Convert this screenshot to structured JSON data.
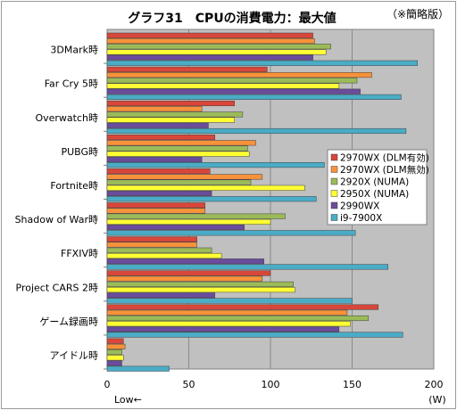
{
  "chart_data": {
    "type": "bar",
    "orientation": "horizontal",
    "title": "グラフ31　CPUの消費電力：最大値",
    "note": "（※簡略版）",
    "categories": [
      "3DMark時",
      "Far Cry 5時",
      "Overwatch時",
      "PUBG時",
      "Fortnite時",
      "Shadow of War時",
      "FFXIV時",
      "Project CARS 2時",
      "ゲーム録画時",
      "アイドル時"
    ],
    "series": [
      {
        "name": "2970WX (DLM有効)",
        "color": "#d9463a",
        "values": [
          126,
          98,
          78,
          66,
          63,
          60,
          55,
          100,
          166,
          10
        ]
      },
      {
        "name": "2970WX (DLM無効)",
        "color": "#f7923a",
        "values": [
          127,
          162,
          58,
          91,
          95,
          60,
          55,
          95,
          147,
          11
        ]
      },
      {
        "name": "2920X (NUMA)",
        "color": "#9bbb59",
        "values": [
          137,
          153,
          83,
          86,
          88,
          109,
          64,
          114,
          160,
          9
        ]
      },
      {
        "name": "2950X (NUMA)",
        "color": "#ffff33",
        "values": [
          134,
          142,
          78,
          87,
          121,
          100,
          70,
          115,
          149,
          10
        ]
      },
      {
        "name": "2990WX",
        "color": "#6a4c9c",
        "values": [
          126,
          155,
          62,
          58,
          64,
          84,
          96,
          66,
          142,
          9
        ]
      },
      {
        "name": "i9-7900X",
        "color": "#4aacc6",
        "values": [
          190,
          180,
          183,
          133,
          128,
          152,
          172,
          150,
          181,
          38
        ]
      }
    ],
    "xlim": [
      0,
      200
    ],
    "xticks": [
      0,
      50,
      100,
      150,
      200
    ],
    "xlabel_unit": "(W)",
    "xlabel_left": "Low←",
    "grid": true,
    "legend_position": "right-middle"
  }
}
